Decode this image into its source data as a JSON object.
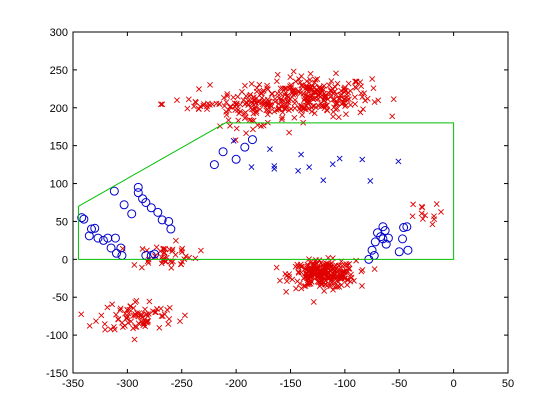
{
  "chart_data": {
    "type": "scatter",
    "title": "",
    "xlabel": "",
    "ylabel": "",
    "xlim": [
      -350,
      50
    ],
    "ylim": [
      -150,
      300
    ],
    "xticks": [
      -350,
      -300,
      -250,
      -200,
      -150,
      -100,
      -50,
      0,
      50
    ],
    "yticks": [
      -150,
      -100,
      -50,
      0,
      50,
      100,
      150,
      200,
      250,
      300
    ],
    "grid": false,
    "legend": "none",
    "colors": {
      "red": "#e00000",
      "blue": "#0000cc",
      "green": "#00c000",
      "axis": "#000000"
    },
    "clusters": [
      {
        "marker": "x",
        "color": "red",
        "center": [
          -130,
          215
        ],
        "spread": [
          45,
          22
        ],
        "count": 260
      },
      {
        "marker": "x",
        "color": "red",
        "center": [
          -185,
          198
        ],
        "spread": [
          25,
          20
        ],
        "count": 80
      },
      {
        "marker": "x",
        "color": "red",
        "center": [
          -225,
          205
        ],
        "spread": [
          35,
          10
        ],
        "count": 30
      },
      {
        "marker": "x",
        "color": "red",
        "center": [
          -120,
          -20
        ],
        "spread": [
          25,
          15
        ],
        "count": 260
      },
      {
        "marker": "x",
        "color": "red",
        "center": [
          -290,
          -75
        ],
        "spread": [
          30,
          18
        ],
        "count": 80
      },
      {
        "marker": "x",
        "color": "red",
        "center": [
          -265,
          5
        ],
        "spread": [
          25,
          14
        ],
        "count": 45
      },
      {
        "marker": "x",
        "color": "red",
        "center": [
          -30,
          60
        ],
        "spread": [
          15,
          12
        ],
        "count": 12
      },
      {
        "marker": "x",
        "color": "blue",
        "center": [
          -150,
          120
        ],
        "spread": [
          70,
          40
        ],
        "count": 14
      }
    ],
    "series": [
      {
        "marker": "o",
        "color": "blue",
        "points": [
          [
            -342,
            55
          ],
          [
            -340,
            53
          ],
          [
            -333,
            40
          ],
          [
            -330,
            41
          ],
          [
            -335,
            31
          ],
          [
            -327,
            28
          ],
          [
            -322,
            25
          ],
          [
            -318,
            28
          ],
          [
            -315,
            15
          ],
          [
            -311,
            28
          ],
          [
            -310,
            8
          ],
          [
            -306,
            15
          ],
          [
            -305,
            5
          ],
          [
            -312,
            90
          ],
          [
            -303,
            72
          ],
          [
            -296,
            60
          ],
          [
            -290,
            95
          ],
          [
            -286,
            80
          ],
          [
            -283,
            75
          ],
          [
            -278,
            68
          ],
          [
            -272,
            62
          ],
          [
            -268,
            52
          ],
          [
            -262,
            50
          ],
          [
            -275,
            7
          ],
          [
            -278,
            5
          ],
          [
            -283,
            5
          ],
          [
            -290,
            88
          ],
          [
            -260,
            40
          ],
          [
            -220,
            125
          ],
          [
            -212,
            142
          ],
          [
            -200,
            132
          ],
          [
            -192,
            148
          ],
          [
            -185,
            158
          ],
          [
            -72,
            23
          ],
          [
            -70,
            35
          ],
          [
            -67,
            30
          ],
          [
            -65,
            27
          ],
          [
            -65,
            43
          ],
          [
            -63,
            38
          ],
          [
            -62,
            20
          ],
          [
            -60,
            28
          ],
          [
            -50,
            10
          ],
          [
            -47,
            27
          ],
          [
            -46,
            42
          ],
          [
            -43,
            43
          ],
          [
            -42,
            12
          ],
          [
            -75,
            12
          ],
          [
            -78,
            0
          ],
          [
            -73,
            5
          ]
        ]
      },
      {
        "marker": "polygon",
        "color": "green",
        "points": [
          [
            -345,
            0
          ],
          [
            -345,
            70
          ],
          [
            -210,
            180
          ],
          [
            0,
            180
          ],
          [
            0,
            0
          ]
        ]
      }
    ]
  }
}
